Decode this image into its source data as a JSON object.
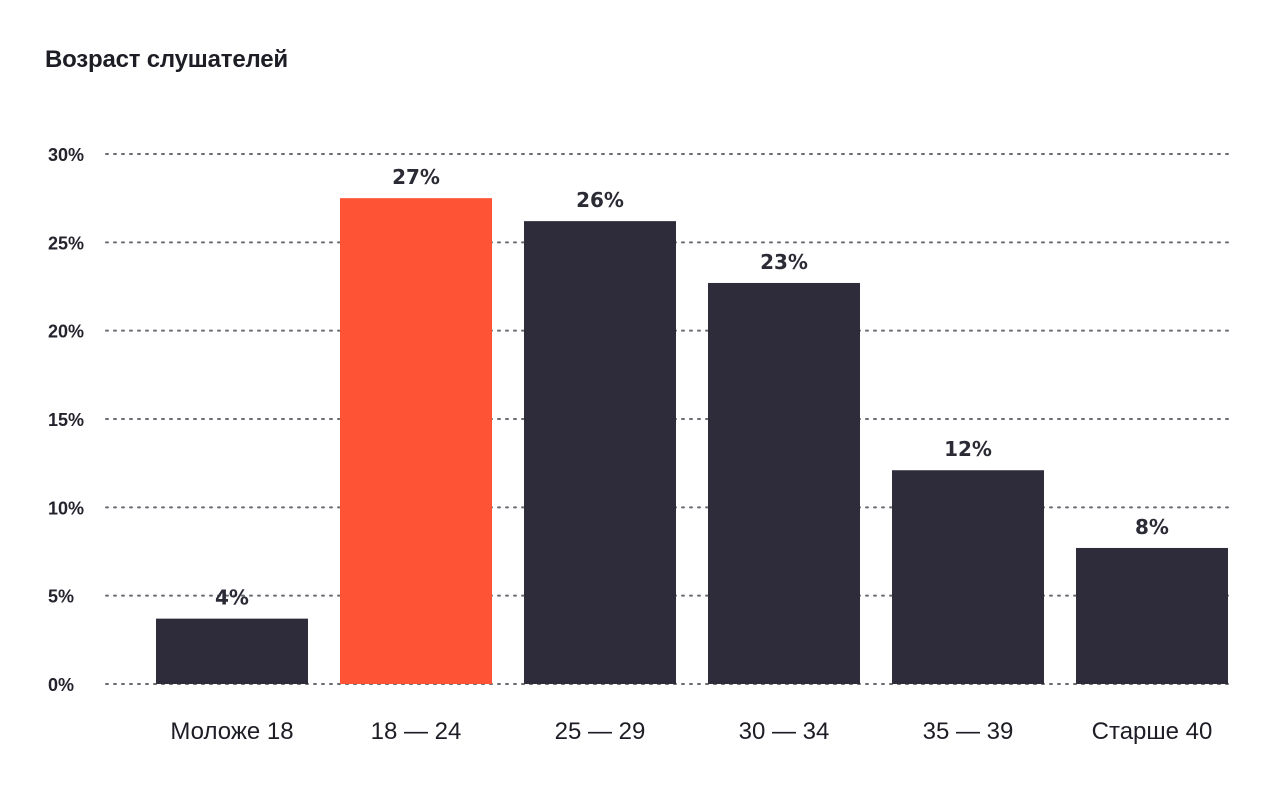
{
  "chart_data": {
    "type": "bar",
    "title": "Возраст слушателей",
    "xlabel": "",
    "ylabel": "",
    "ylim": [
      0,
      30
    ],
    "yticks": [
      0,
      5,
      10,
      15,
      20,
      25,
      30
    ],
    "ytick_labels": [
      "0%",
      "5%",
      "10%",
      "15%",
      "20%",
      "25%",
      "30%"
    ],
    "categories": [
      "Моложе 18",
      "18 — 24",
      "25 — 29",
      "30 — 34",
      "35 — 39",
      "Старше 40"
    ],
    "values": [
      3.7,
      27.5,
      26.2,
      22.7,
      12.1,
      7.7
    ],
    "value_labels": [
      "4%",
      "27%",
      "26%",
      "23%",
      "12%",
      "8%"
    ],
    "highlight_index": 1,
    "grid": true,
    "legend": "none",
    "colors": {
      "bar": "#2e2b3a",
      "highlight": "#fe5435",
      "grid": "#6b6b74"
    }
  }
}
